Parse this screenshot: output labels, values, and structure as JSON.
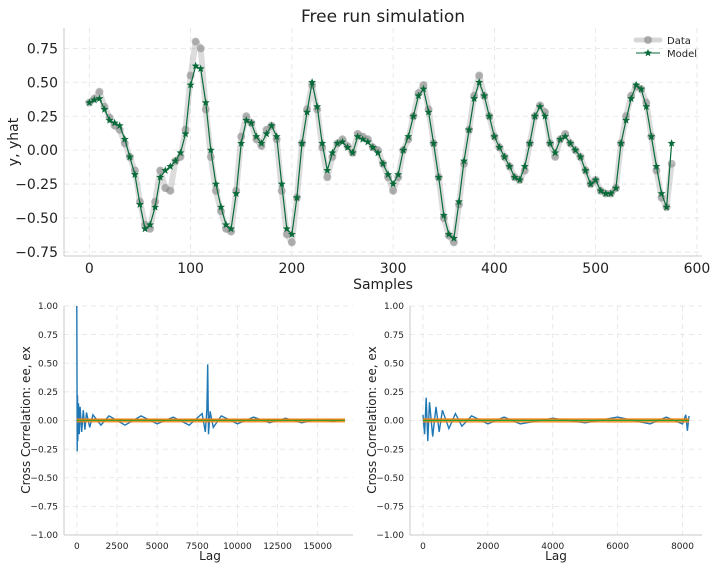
{
  "chart_data": [
    {
      "type": "line",
      "title": "Free run simulation",
      "xlabel": "Samples",
      "ylabel": "y, yhat",
      "xlim": [
        -25,
        605
      ],
      "ylim": [
        -0.78,
        0.9
      ],
      "xticks": [
        0,
        100,
        200,
        300,
        400,
        500,
        600
      ],
      "yticks": [
        -0.75,
        -0.5,
        -0.25,
        0.0,
        0.25,
        0.5,
        0.75
      ],
      "xtick_labels": [
        "0",
        "100",
        "200",
        "300",
        "400",
        "500",
        "600"
      ],
      "ytick_labels": [
        "−0.75",
        "−0.50",
        "−0.25",
        "0.00",
        "0.25",
        "0.50",
        "0.75"
      ],
      "grid": true,
      "legend_position": "top-right",
      "series": [
        {
          "name": "Data",
          "color": "#7a7a7a",
          "marker": "circle",
          "x": [
            0,
            5,
            10,
            15,
            20,
            25,
            30,
            35,
            40,
            45,
            50,
            55,
            60,
            65,
            70,
            75,
            80,
            85,
            90,
            95,
            100,
            105,
            110,
            115,
            120,
            125,
            130,
            135,
            140,
            145,
            150,
            155,
            160,
            165,
            170,
            175,
            180,
            185,
            190,
            195,
            200,
            205,
            210,
            215,
            220,
            225,
            230,
            235,
            240,
            245,
            250,
            255,
            260,
            265,
            270,
            275,
            280,
            285,
            290,
            295,
            300,
            305,
            310,
            315,
            320,
            325,
            330,
            335,
            340,
            345,
            350,
            355,
            360,
            365,
            370,
            375,
            380,
            385,
            390,
            395,
            400,
            405,
            410,
            415,
            420,
            425,
            430,
            435,
            440,
            445,
            450,
            455,
            460,
            465,
            470,
            475,
            480,
            485,
            490,
            495,
            500,
            505,
            510,
            515,
            520,
            525,
            530,
            535,
            540,
            545,
            550,
            555,
            560,
            565,
            570,
            575
          ],
          "y": [
            0.35,
            0.38,
            0.43,
            0.32,
            0.24,
            0.18,
            0.15,
            0.05,
            -0.05,
            -0.15,
            -0.38,
            -0.55,
            -0.58,
            -0.38,
            -0.15,
            -0.28,
            -0.3,
            -0.08,
            -0.05,
            0.15,
            0.55,
            0.8,
            0.75,
            0.3,
            -0.05,
            -0.3,
            -0.45,
            -0.58,
            -0.6,
            -0.3,
            0.1,
            0.25,
            0.2,
            0.08,
            0.03,
            0.15,
            0.18,
            0.08,
            -0.3,
            -0.62,
            -0.68,
            -0.35,
            0.05,
            0.3,
            0.48,
            0.3,
            0.02,
            -0.2,
            -0.05,
            0.05,
            0.08,
            0.03,
            -0.02,
            0.12,
            0.1,
            0.08,
            0.02,
            0.0,
            -0.1,
            -0.2,
            -0.3,
            -0.2,
            0.0,
            0.08,
            0.25,
            0.42,
            0.48,
            0.3,
            0.05,
            -0.2,
            -0.5,
            -0.63,
            -0.68,
            -0.4,
            -0.1,
            0.15,
            0.4,
            0.55,
            0.4,
            0.25,
            0.1,
            0.02,
            -0.05,
            -0.12,
            -0.2,
            -0.22,
            -0.15,
            0.05,
            0.25,
            0.33,
            0.28,
            0.05,
            -0.05,
            0.08,
            0.12,
            0.05,
            0.0,
            -0.05,
            -0.15,
            -0.25,
            -0.22,
            -0.3,
            -0.32,
            -0.32,
            -0.28,
            0.05,
            0.25,
            0.4,
            0.47,
            0.45,
            0.35,
            0.1,
            -0.15,
            -0.35,
            -0.42,
            -0.1
          ]
        },
        {
          "name": "Model",
          "color": "#0a6b3a",
          "marker": "star",
          "x": [
            0,
            5,
            10,
            15,
            20,
            25,
            30,
            35,
            40,
            45,
            50,
            55,
            60,
            65,
            70,
            75,
            80,
            85,
            90,
            95,
            100,
            105,
            110,
            115,
            120,
            125,
            130,
            135,
            140,
            145,
            150,
            155,
            160,
            165,
            170,
            175,
            180,
            185,
            190,
            195,
            200,
            205,
            210,
            215,
            220,
            225,
            230,
            235,
            240,
            245,
            250,
            255,
            260,
            265,
            270,
            275,
            280,
            285,
            290,
            295,
            300,
            305,
            310,
            315,
            320,
            325,
            330,
            335,
            340,
            345,
            350,
            355,
            360,
            365,
            370,
            375,
            380,
            385,
            390,
            395,
            400,
            405,
            410,
            415,
            420,
            425,
            430,
            435,
            440,
            445,
            450,
            455,
            460,
            465,
            470,
            475,
            480,
            485,
            490,
            495,
            500,
            505,
            510,
            515,
            520,
            525,
            530,
            535,
            540,
            545,
            550,
            555,
            560,
            565,
            570,
            575
          ],
          "y": [
            0.35,
            0.37,
            0.38,
            0.3,
            0.22,
            0.2,
            0.18,
            0.08,
            -0.05,
            -0.18,
            -0.4,
            -0.58,
            -0.55,
            -0.42,
            -0.2,
            -0.15,
            -0.12,
            -0.08,
            -0.02,
            0.12,
            0.48,
            0.62,
            0.6,
            0.35,
            0.0,
            -0.25,
            -0.42,
            -0.55,
            -0.58,
            -0.32,
            0.05,
            0.22,
            0.2,
            0.1,
            0.05,
            0.12,
            0.18,
            0.1,
            -0.25,
            -0.58,
            -0.62,
            -0.35,
            0.05,
            0.28,
            0.5,
            0.32,
            0.05,
            -0.15,
            -0.02,
            0.05,
            0.06,
            0.02,
            -0.02,
            0.1,
            0.08,
            0.06,
            0.02,
            -0.02,
            -0.1,
            -0.18,
            -0.25,
            -0.18,
            0.0,
            0.1,
            0.25,
            0.4,
            0.45,
            0.28,
            0.05,
            -0.2,
            -0.48,
            -0.62,
            -0.65,
            -0.38,
            -0.08,
            0.15,
            0.38,
            0.5,
            0.4,
            0.25,
            0.1,
            0.02,
            -0.05,
            -0.12,
            -0.2,
            -0.22,
            -0.12,
            0.05,
            0.25,
            0.32,
            0.25,
            0.05,
            -0.02,
            0.08,
            0.1,
            0.05,
            0.0,
            -0.05,
            -0.15,
            -0.25,
            -0.22,
            -0.3,
            -0.32,
            -0.32,
            -0.28,
            0.05,
            0.22,
            0.38,
            0.48,
            0.45,
            0.32,
            0.1,
            -0.12,
            -0.32,
            -0.42,
            0.05
          ]
        }
      ]
    },
    {
      "type": "line",
      "title": "",
      "xlabel": "Lag",
      "ylabel": "Cross Correlation: ee, ex",
      "xlim": [
        -800,
        17200
      ],
      "ylim": [
        -1.0,
        1.0
      ],
      "xticks": [
        0,
        2500,
        5000,
        7500,
        10000,
        12500,
        15000
      ],
      "yticks": [
        -1.0,
        -0.75,
        -0.5,
        -0.25,
        0.0,
        0.25,
        0.5,
        0.75,
        1.0
      ],
      "xtick_labels": [
        "0",
        "2500",
        "5000",
        "7500",
        "10000",
        "12500",
        "15000"
      ],
      "ytick_labels": [
        "−1.00",
        "−0.75",
        "−0.50",
        "−0.25",
        "0.00",
        "0.25",
        "0.50",
        "0.75",
        "1.00"
      ],
      "grid": true,
      "confidence_band": [
        -0.01,
        0.01
      ],
      "band_xlim": [
        0,
        16700
      ],
      "series": [
        {
          "color": "#1f77b4",
          "x": [
            0,
            20,
            40,
            60,
            100,
            150,
            200,
            300,
            400,
            500,
            600,
            800,
            1000,
            1500,
            2000,
            3000,
            4000,
            5000,
            6000,
            7000,
            7800,
            8000,
            8100,
            8150,
            8200,
            8300,
            8500,
            9000,
            10000,
            11000,
            12000,
            13000,
            14000,
            15000,
            16000,
            16500
          ],
          "y": [
            1.0,
            -0.27,
            0.22,
            -0.18,
            0.15,
            -0.12,
            0.12,
            -0.1,
            0.09,
            -0.08,
            0.07,
            -0.06,
            0.05,
            -0.04,
            0.04,
            -0.04,
            0.04,
            -0.03,
            0.03,
            -0.04,
            0.06,
            -0.1,
            0.1,
            0.49,
            -0.12,
            0.08,
            -0.06,
            0.04,
            -0.03,
            0.03,
            -0.02,
            0.02,
            -0.02,
            0.01,
            -0.01,
            0.01
          ]
        }
      ]
    },
    {
      "type": "line",
      "title": "",
      "xlabel": "Lag",
      "ylabel": "Cross Correlation: ee, ex",
      "xlim": [
        -400,
        8600
      ],
      "ylim": [
        -1.0,
        1.0
      ],
      "xticks": [
        0,
        2000,
        4000,
        6000,
        8000
      ],
      "yticks": [
        -1.0,
        -0.75,
        -0.5,
        -0.25,
        0.0,
        0.25,
        0.5,
        0.75,
        1.0
      ],
      "xtick_labels": [
        "0",
        "2000",
        "4000",
        "6000",
        "8000"
      ],
      "ytick_labels": [
        "−1.00",
        "−0.75",
        "−0.50",
        "−0.25",
        "0.00",
        "0.25",
        "0.50",
        "0.75",
        "1.00"
      ],
      "grid": true,
      "confidence_band": [
        -0.012,
        0.012
      ],
      "band_xlim": [
        0,
        8200
      ],
      "series": [
        {
          "color": "#1f77b4",
          "x": [
            0,
            50,
            100,
            150,
            200,
            300,
            400,
            500,
            600,
            800,
            1000,
            1200,
            1500,
            2000,
            2500,
            3000,
            4000,
            5000,
            6000,
            7000,
            7500,
            8000,
            8100,
            8150,
            8200
          ],
          "y": [
            0.05,
            -0.12,
            0.2,
            -0.18,
            0.16,
            -0.14,
            0.12,
            -0.1,
            0.09,
            -0.07,
            0.06,
            -0.05,
            0.04,
            -0.03,
            0.03,
            -0.03,
            0.02,
            -0.02,
            0.03,
            -0.03,
            0.03,
            -0.03,
            0.05,
            -0.09,
            0.04
          ]
        }
      ]
    }
  ]
}
